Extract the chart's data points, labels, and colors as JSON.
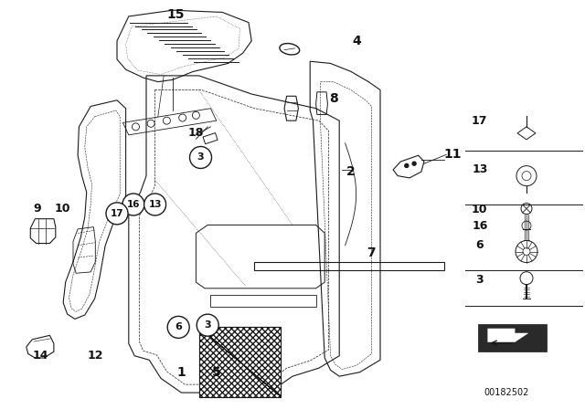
{
  "bg_color": "#ffffff",
  "line_color": "#1a1a1a",
  "part_number": "00182502",
  "figsize": [
    6.4,
    4.48
  ],
  "dpi": 100
}
